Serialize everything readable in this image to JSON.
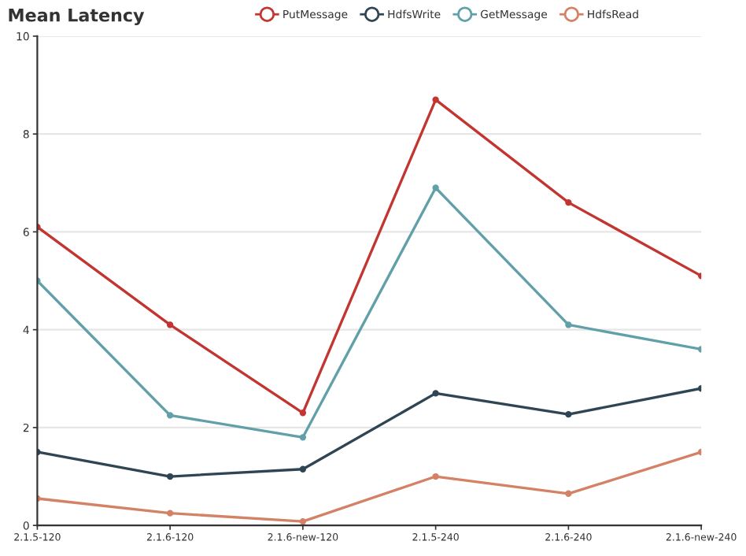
{
  "chart_data": {
    "type": "line",
    "title": "Mean Latency",
    "categories": [
      "2.1.5-120",
      "2.1.6-120",
      "2.1.6-new-120",
      "2.1.5-240",
      "2.1.6-240",
      "2.1.6-new-240"
    ],
    "series": [
      {
        "name": "PutMessage",
        "color": "#c23531",
        "values": [
          6.1,
          4.1,
          2.3,
          8.7,
          6.6,
          5.1
        ]
      },
      {
        "name": "HdfsWrite",
        "color": "#2f4554",
        "values": [
          1.5,
          1.0,
          1.15,
          2.7,
          2.27,
          2.8
        ]
      },
      {
        "name": "GetMessage",
        "color": "#61a0a8",
        "values": [
          5.0,
          2.25,
          1.8,
          6.9,
          4.1,
          3.6
        ]
      },
      {
        "name": "HdfsRead",
        "color": "#d48265",
        "values": [
          0.55,
          0.25,
          0.08,
          1.0,
          0.65,
          1.5
        ]
      }
    ],
    "ylim": [
      0,
      10
    ],
    "yticks": [
      0,
      2,
      4,
      6,
      8,
      10
    ],
    "grid": "y",
    "legend": "top",
    "marker": "circle"
  }
}
